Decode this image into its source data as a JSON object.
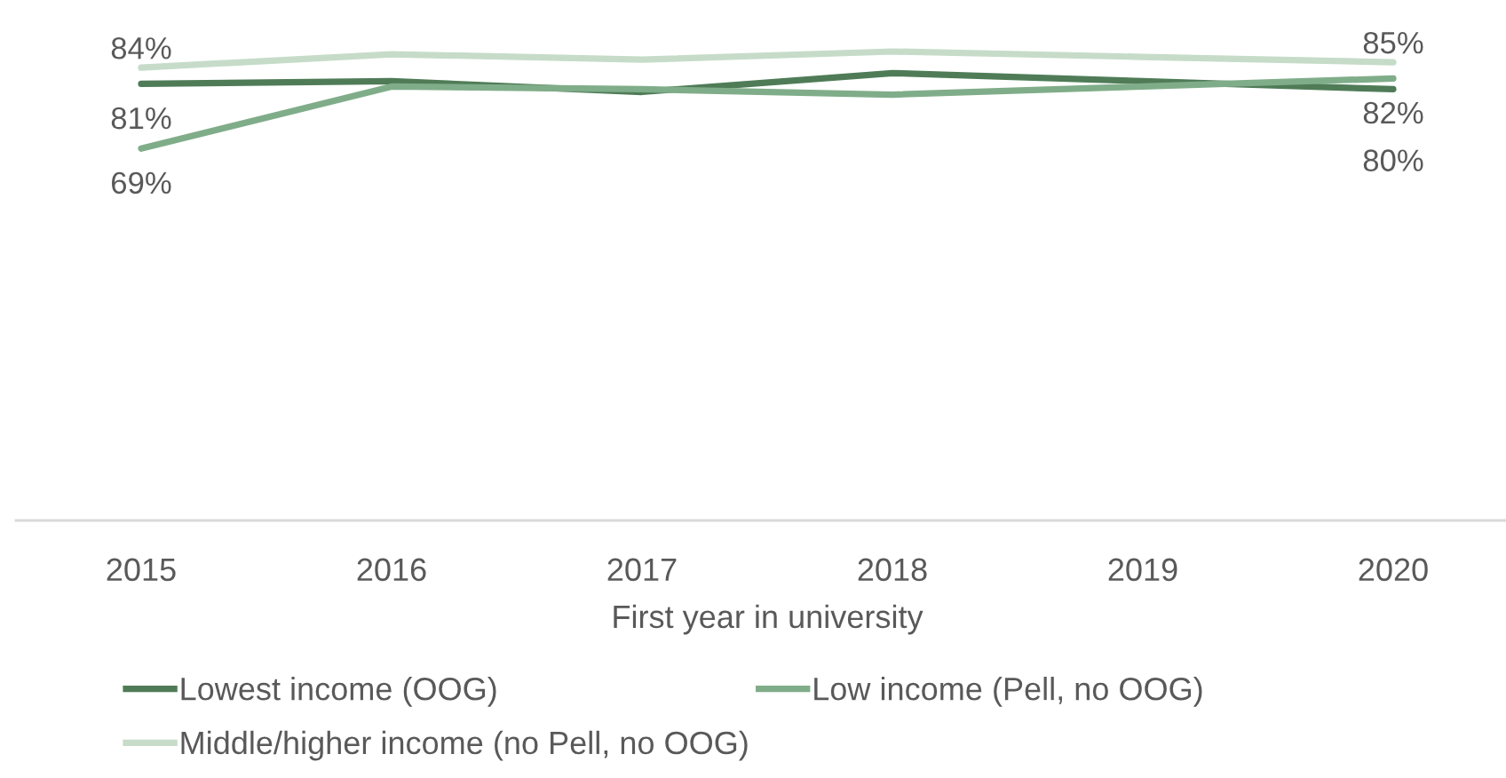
{
  "chart_data": {
    "type": "line",
    "categories": [
      "2015",
      "2016",
      "2017",
      "2018",
      "2019",
      "2020"
    ],
    "xlabel": "First year in university",
    "tick_labels": "x",
    "legend": "bottom",
    "grid": false,
    "marker": "none",
    "line_style": "solid",
    "series": [
      {
        "name": "Lowest income (OOG)",
        "color": "#4f7c57",
        "values": [
          81,
          81.5,
          79.5,
          83,
          81.5,
          80
        ],
        "value_labels": [
          "81%",
          null,
          null,
          null,
          null,
          "80%"
        ]
      },
      {
        "name": "Low income (Pell, no OOG)",
        "color": "#80ad89",
        "values": [
          69,
          80.5,
          80,
          79,
          80.5,
          82
        ],
        "value_labels": [
          "69%",
          null,
          null,
          null,
          null,
          "82%"
        ]
      },
      {
        "name": "Middle/higher income (no Pell, no OOG)",
        "color": "#c6dcc9",
        "values": [
          84,
          86.5,
          85.5,
          87,
          86,
          85
        ],
        "value_labels": [
          "84%",
          null,
          null,
          null,
          null,
          "85%"
        ]
      }
    ]
  }
}
